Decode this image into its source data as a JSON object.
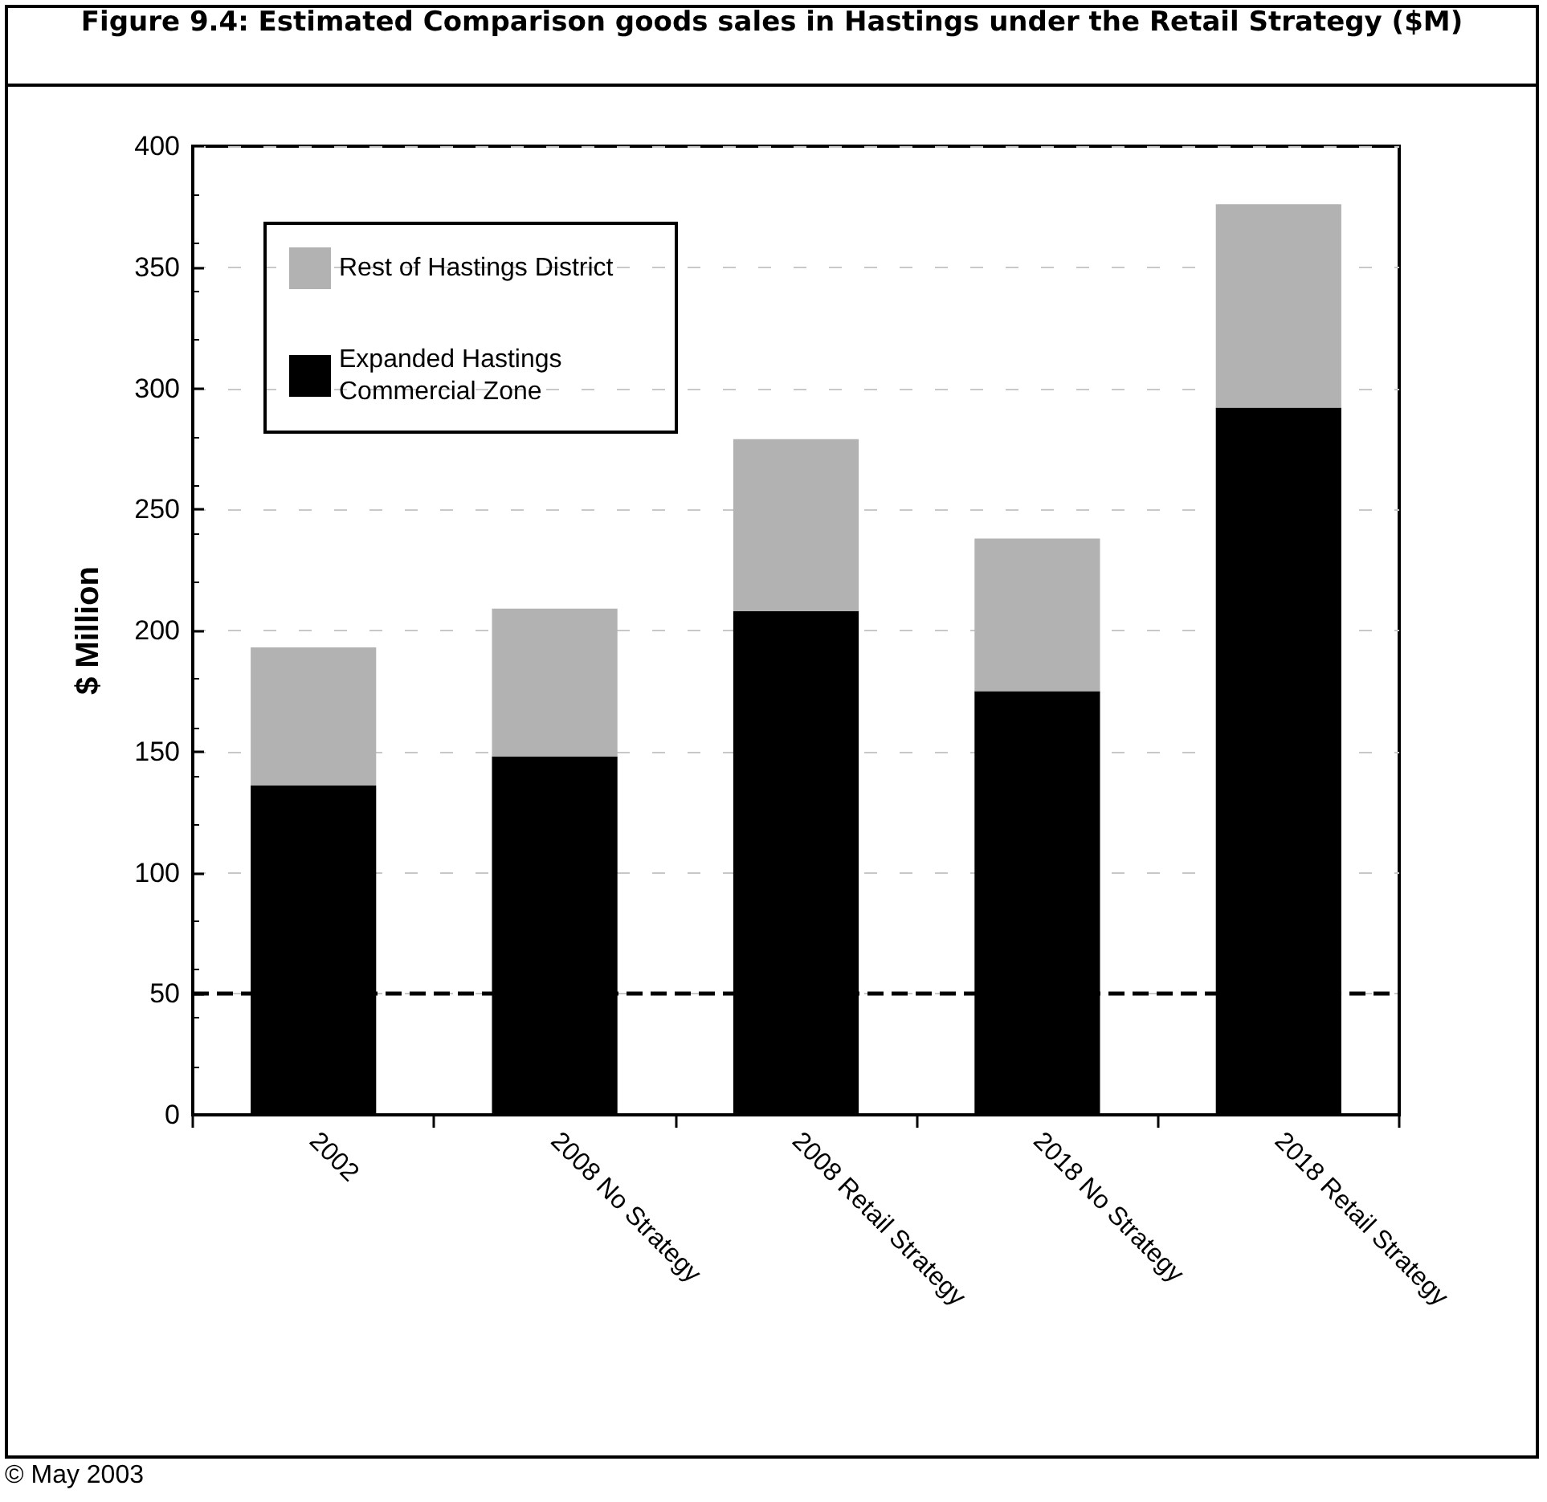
{
  "chart_data": {
    "type": "bar",
    "title": "Figure 9.4:  Estimated Comparison goods sales in Hastings under the Retail Strategy ($M)",
    "ylabel": "$ Million",
    "categories": [
      "2002",
      "2008 No Strategy",
      "2008 Retail Strategy",
      "2018 No Strategy",
      "2018 Retail Strategy"
    ],
    "series": [
      {
        "name": "Expanded Hastings Commercial Zone",
        "color": "#000000",
        "values": [
          136,
          148,
          208,
          175,
          292
        ]
      },
      {
        "name": "Rest of Hastings District",
        "color": "#b2b2b2",
        "values": [
          57,
          61,
          71,
          63,
          84
        ]
      }
    ],
    "stacked": true,
    "ylim": [
      0,
      400
    ],
    "yticks": [
      0,
      50,
      100,
      150,
      200,
      250,
      300,
      350,
      400
    ],
    "grid": "y",
    "legend": "top left",
    "ref_lines": [
      {
        "axis": "y",
        "value": 50,
        "color": "#000000",
        "line_style": "dashed"
      }
    ],
    "annotations": [
      "© May 2003"
    ]
  }
}
